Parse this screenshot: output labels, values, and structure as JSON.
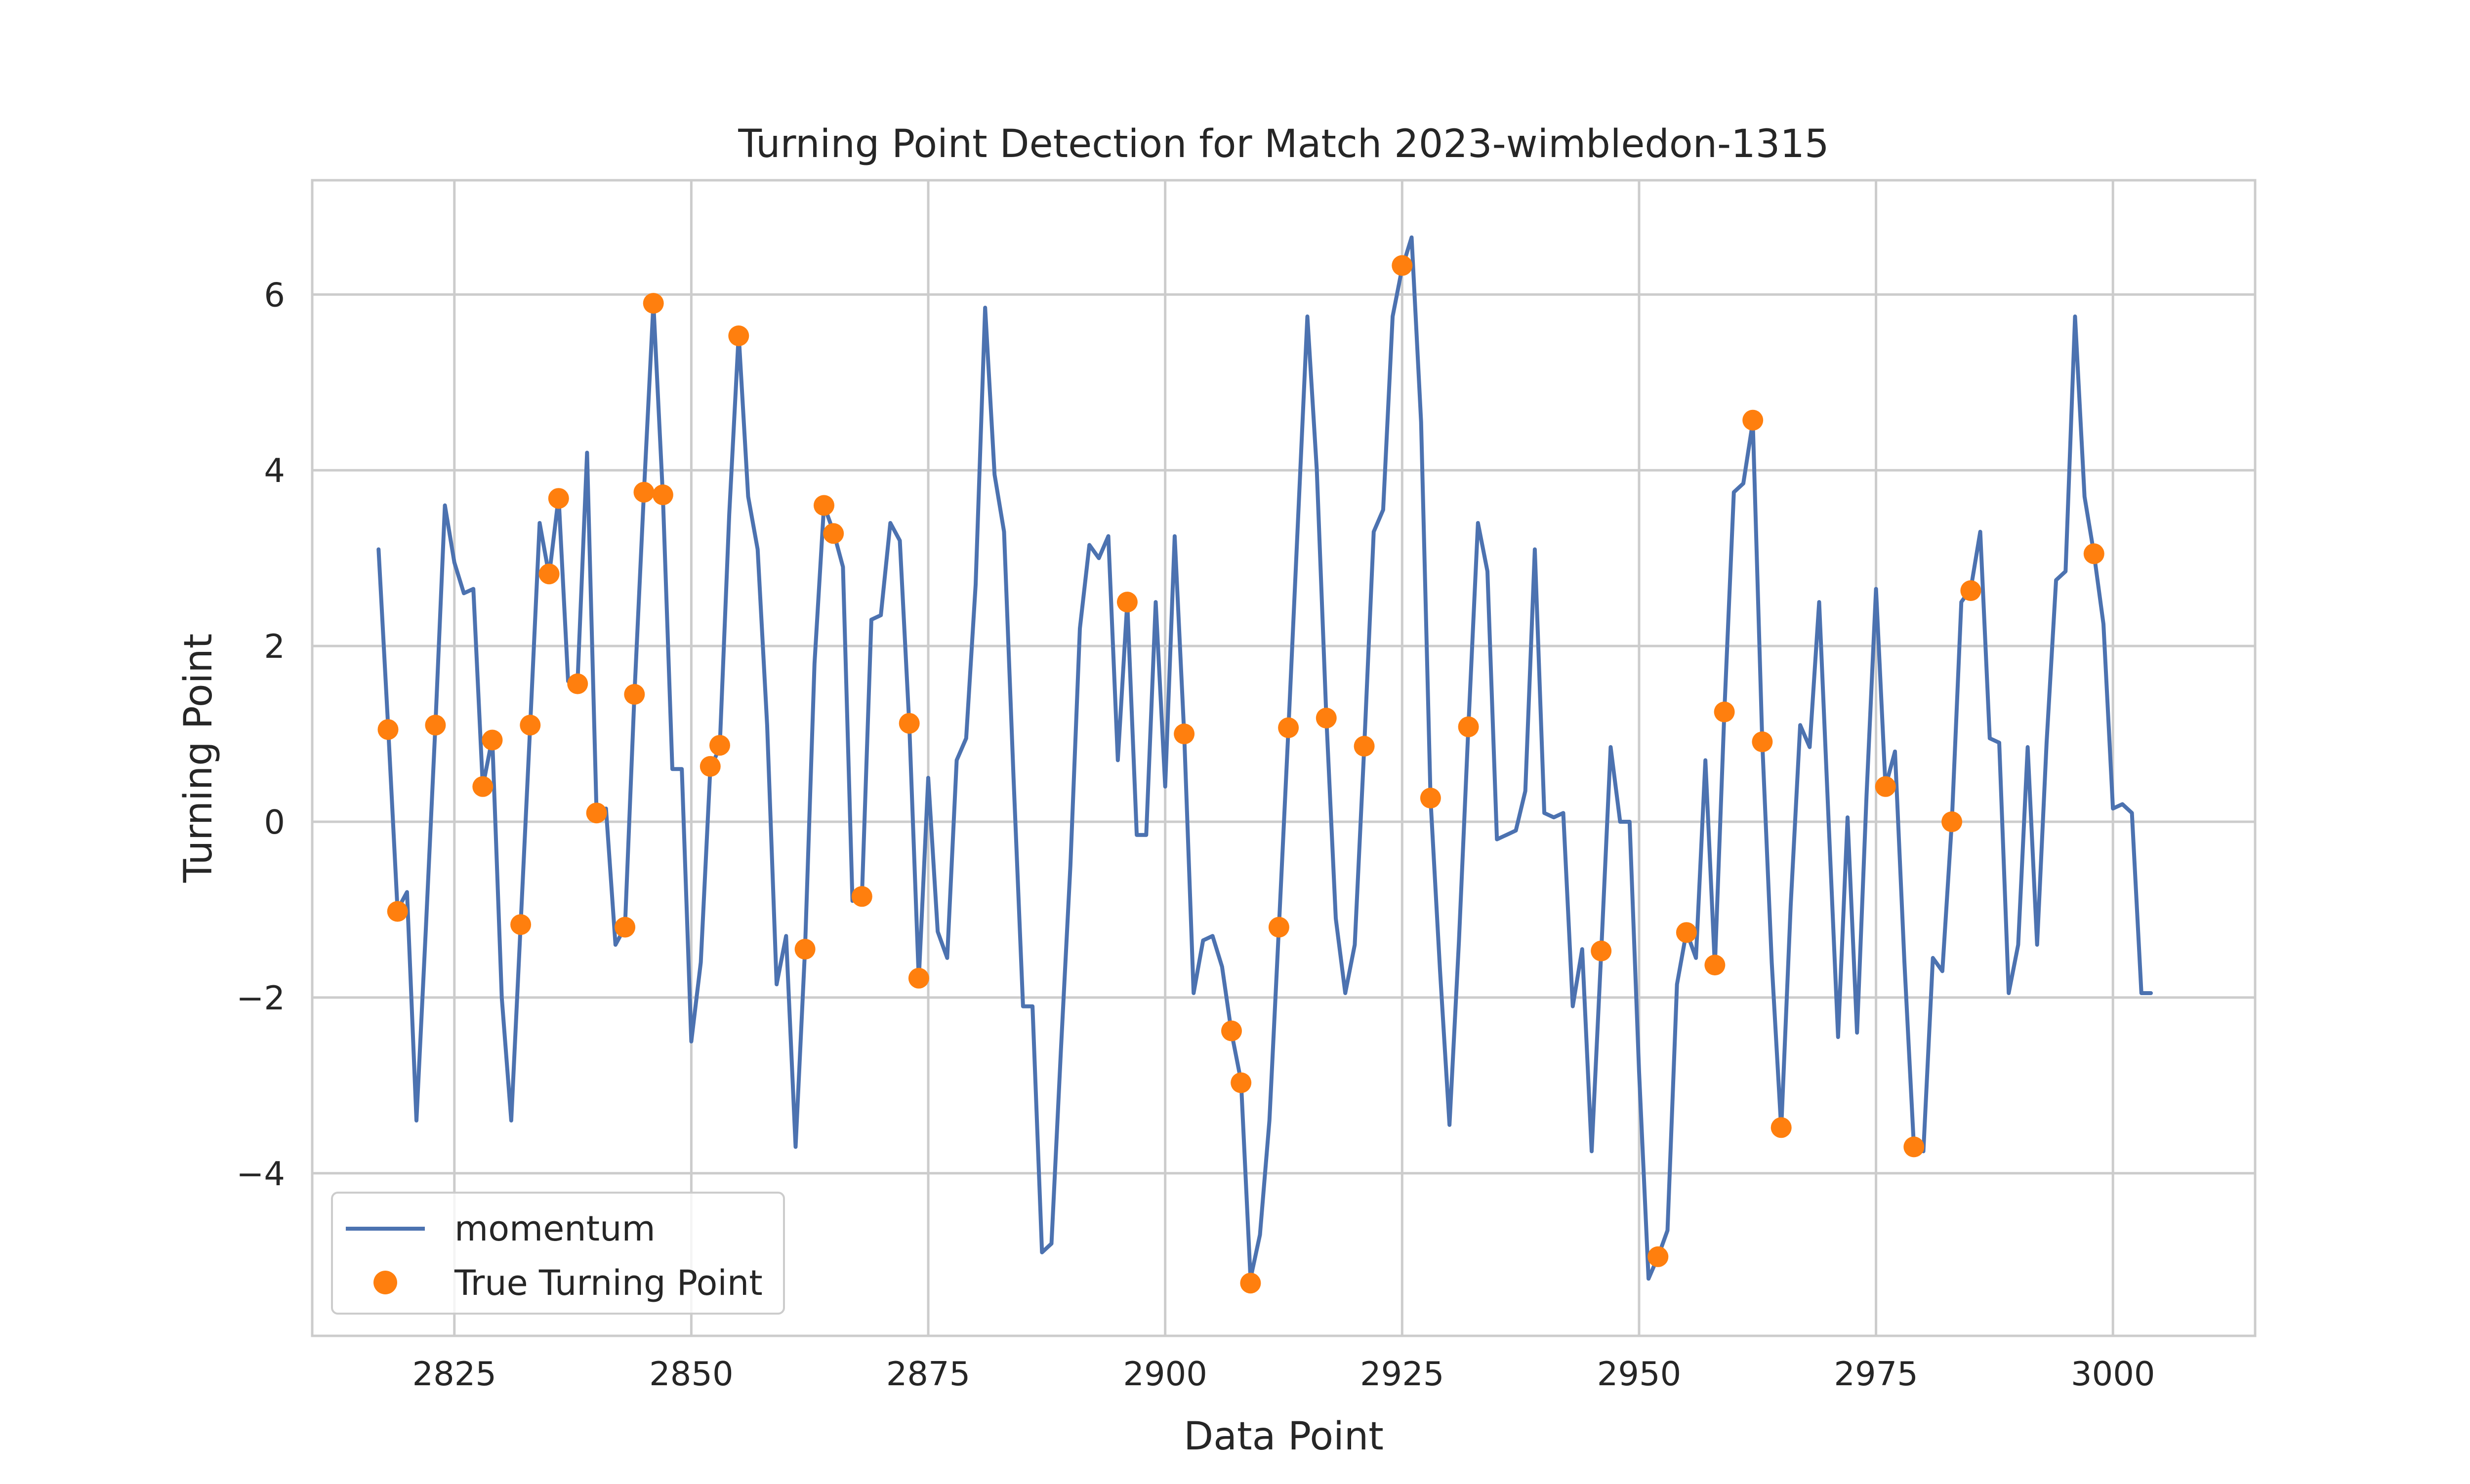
{
  "chart_data": {
    "type": "line",
    "title": "Turning Point Detection for Match 2023-wimbledon-1315",
    "xlabel": "Data Point",
    "ylabel": "Turning Point",
    "xlim": [
      2810,
      3015
    ],
    "ylim": [
      -5.85,
      7.3
    ],
    "x_ticks": [
      2825,
      2850,
      2875,
      2900,
      2925,
      2950,
      2975,
      3000
    ],
    "y_ticks": [
      -4,
      -2,
      0,
      2,
      4,
      6
    ],
    "grid": true,
    "legend_position": "lower-left",
    "series": [
      {
        "name": "momentum",
        "type": "line",
        "color": "#4c72b0",
        "points": [
          [
            2817,
            3.1
          ],
          [
            2818,
            1.1
          ],
          [
            2819,
            -1.0
          ],
          [
            2820,
            -0.8
          ],
          [
            2821,
            -3.4
          ],
          [
            2822,
            -1.2
          ],
          [
            2823,
            1.1
          ],
          [
            2824,
            3.6
          ],
          [
            2825,
            2.95
          ],
          [
            2826,
            2.6
          ],
          [
            2827,
            2.65
          ],
          [
            2828,
            0.4
          ],
          [
            2829,
            0.95
          ],
          [
            2830,
            -2.0
          ],
          [
            2831,
            -3.4
          ],
          [
            2832,
            -1.15
          ],
          [
            2833,
            1.1
          ],
          [
            2834,
            3.4
          ],
          [
            2835,
            2.8
          ],
          [
            2836,
            3.7
          ],
          [
            2837,
            1.6
          ],
          [
            2838,
            1.6
          ],
          [
            2839,
            4.2
          ],
          [
            2840,
            0.1
          ],
          [
            2841,
            0.15
          ],
          [
            2842,
            -1.4
          ],
          [
            2843,
            -1.2
          ],
          [
            2844,
            1.45
          ],
          [
            2845,
            3.75
          ],
          [
            2846,
            5.9
          ],
          [
            2847,
            3.7
          ],
          [
            2848,
            0.6
          ],
          [
            2849,
            0.6
          ],
          [
            2850,
            -2.5
          ],
          [
            2851,
            -1.6
          ],
          [
            2852,
            0.6
          ],
          [
            2853,
            0.85
          ],
          [
            2854,
            3.5
          ],
          [
            2855,
            5.55
          ],
          [
            2856,
            3.7
          ],
          [
            2857,
            3.1
          ],
          [
            2858,
            1.1
          ],
          [
            2859,
            -1.85
          ],
          [
            2860,
            -1.3
          ],
          [
            2861,
            -3.7
          ],
          [
            2862,
            -1.45
          ],
          [
            2863,
            1.8
          ],
          [
            2864,
            3.6
          ],
          [
            2865,
            3.3
          ],
          [
            2866,
            2.9
          ],
          [
            2867,
            -0.9
          ],
          [
            2868,
            -0.85
          ],
          [
            2869,
            2.3
          ],
          [
            2870,
            2.35
          ],
          [
            2871,
            3.4
          ],
          [
            2872,
            3.2
          ],
          [
            2873,
            1.1
          ],
          [
            2874,
            -1.8
          ],
          [
            2875,
            0.5
          ],
          [
            2876,
            -1.25
          ],
          [
            2877,
            -1.55
          ],
          [
            2878,
            0.7
          ],
          [
            2879,
            0.95
          ],
          [
            2880,
            2.7
          ],
          [
            2881,
            5.85
          ],
          [
            2882,
            3.95
          ],
          [
            2883,
            3.3
          ],
          [
            2884,
            0.5
          ],
          [
            2885,
            -2.1
          ],
          [
            2886,
            -2.1
          ],
          [
            2887,
            -4.9
          ],
          [
            2888,
            -4.8
          ],
          [
            2889,
            -2.6
          ],
          [
            2890,
            -0.5
          ],
          [
            2891,
            2.2
          ],
          [
            2892,
            3.15
          ],
          [
            2893,
            3.0
          ],
          [
            2894,
            3.25
          ],
          [
            2895,
            0.7
          ],
          [
            2896,
            2.5
          ],
          [
            2897,
            -0.15
          ],
          [
            2898,
            -0.15
          ],
          [
            2899,
            2.5
          ],
          [
            2900,
            0.4
          ],
          [
            2901,
            3.25
          ],
          [
            2902,
            1.0
          ],
          [
            2903,
            -1.95
          ],
          [
            2904,
            -1.35
          ],
          [
            2905,
            -1.3
          ],
          [
            2906,
            -1.65
          ],
          [
            2907,
            -2.4
          ],
          [
            2908,
            -2.95
          ],
          [
            2909,
            -5.2
          ],
          [
            2910,
            -4.7
          ],
          [
            2911,
            -3.4
          ],
          [
            2912,
            -1.2
          ],
          [
            2913,
            1.05
          ],
          [
            2914,
            3.4
          ],
          [
            2915,
            5.75
          ],
          [
            2916,
            4.0
          ],
          [
            2917,
            1.2
          ],
          [
            2918,
            -1.1
          ],
          [
            2919,
            -1.95
          ],
          [
            2920,
            -1.4
          ],
          [
            2921,
            0.85
          ],
          [
            2922,
            3.3
          ],
          [
            2923,
            3.55
          ],
          [
            2924,
            5.75
          ],
          [
            2925,
            6.3
          ],
          [
            2926,
            6.65
          ],
          [
            2927,
            4.55
          ],
          [
            2928,
            0.25
          ],
          [
            2929,
            -1.7
          ],
          [
            2930,
            -3.45
          ],
          [
            2931,
            -1.35
          ],
          [
            2932,
            1.1
          ],
          [
            2933,
            3.4
          ],
          [
            2934,
            2.85
          ],
          [
            2935,
            -0.2
          ],
          [
            2936,
            -0.15
          ],
          [
            2937,
            -0.1
          ],
          [
            2938,
            0.35
          ],
          [
            2939,
            3.1
          ],
          [
            2940,
            0.1
          ],
          [
            2941,
            0.05
          ],
          [
            2942,
            0.1
          ],
          [
            2943,
            -2.1
          ],
          [
            2944,
            -1.45
          ],
          [
            2945,
            -3.75
          ],
          [
            2946,
            -1.5
          ],
          [
            2947,
            0.85
          ],
          [
            2948,
            0.0
          ],
          [
            2949,
            0.0
          ],
          [
            2950,
            -2.85
          ],
          [
            2951,
            -5.2
          ],
          [
            2952,
            -4.95
          ],
          [
            2953,
            -4.65
          ],
          [
            2954,
            -1.85
          ],
          [
            2955,
            -1.25
          ],
          [
            2956,
            -1.55
          ],
          [
            2957,
            0.7
          ],
          [
            2958,
            -1.65
          ],
          [
            2959,
            1.25
          ],
          [
            2960,
            3.75
          ],
          [
            2961,
            3.85
          ],
          [
            2962,
            4.55
          ],
          [
            2963,
            0.9
          ],
          [
            2964,
            -1.6
          ],
          [
            2965,
            -3.5
          ],
          [
            2966,
            -0.95
          ],
          [
            2967,
            1.1
          ],
          [
            2968,
            0.85
          ],
          [
            2969,
            2.5
          ],
          [
            2970,
            0.0
          ],
          [
            2971,
            -2.45
          ],
          [
            2972,
            0.05
          ],
          [
            2973,
            -2.4
          ],
          [
            2974,
            0.3
          ],
          [
            2975,
            2.65
          ],
          [
            2976,
            0.4
          ],
          [
            2977,
            0.8
          ],
          [
            2978,
            -1.6
          ],
          [
            2979,
            -3.7
          ],
          [
            2980,
            -3.75
          ],
          [
            2981,
            -1.55
          ],
          [
            2982,
            -1.7
          ],
          [
            2983,
            0.0
          ],
          [
            2984,
            2.5
          ],
          [
            2985,
            2.65
          ],
          [
            2986,
            3.3
          ],
          [
            2987,
            0.95
          ],
          [
            2988,
            0.9
          ],
          [
            2989,
            -1.95
          ],
          [
            2990,
            -1.4
          ],
          [
            2991,
            0.85
          ],
          [
            2992,
            -1.4
          ],
          [
            2993,
            0.9
          ],
          [
            2994,
            2.75
          ],
          [
            2995,
            2.85
          ],
          [
            2996,
            5.75
          ],
          [
            2997,
            3.7
          ],
          [
            2998,
            3.05
          ],
          [
            2999,
            2.25
          ],
          [
            3000,
            0.15
          ],
          [
            3001,
            0.2
          ],
          [
            3002,
            0.1
          ],
          [
            3003,
            -1.95
          ],
          [
            3004,
            -1.95
          ]
        ]
      },
      {
        "name": "True Turning Point",
        "type": "scatter",
        "color": "#ff7f0e",
        "points": [
          [
            2818,
            1.05
          ],
          [
            2819,
            -1.02
          ],
          [
            2823,
            1.1
          ],
          [
            2828,
            0.4
          ],
          [
            2829,
            0.93
          ],
          [
            2832,
            -1.17
          ],
          [
            2833,
            1.1
          ],
          [
            2835,
            2.82
          ],
          [
            2836,
            3.68
          ],
          [
            2838,
            1.57
          ],
          [
            2840,
            0.1
          ],
          [
            2843,
            -1.2
          ],
          [
            2844,
            1.45
          ],
          [
            2845,
            3.75
          ],
          [
            2846,
            5.9
          ],
          [
            2847,
            3.72
          ],
          [
            2852,
            0.63
          ],
          [
            2853,
            0.87
          ],
          [
            2855,
            5.53
          ],
          [
            2862,
            -1.45
          ],
          [
            2864,
            3.6
          ],
          [
            2865,
            3.28
          ],
          [
            2868,
            -0.85
          ],
          [
            2873,
            1.12
          ],
          [
            2874,
            -1.78
          ],
          [
            2896,
            2.5
          ],
          [
            2902,
            1.0
          ],
          [
            2907,
            -2.38
          ],
          [
            2908,
            -2.97
          ],
          [
            2909,
            -5.25
          ],
          [
            2912,
            -1.2
          ],
          [
            2913,
            1.07
          ],
          [
            2917,
            1.18
          ],
          [
            2921,
            0.86
          ],
          [
            2925,
            6.33
          ],
          [
            2928,
            0.27
          ],
          [
            2932,
            1.08
          ],
          [
            2946,
            -1.47
          ],
          [
            2952,
            -4.95
          ],
          [
            2955,
            -1.26
          ],
          [
            2958,
            -1.63
          ],
          [
            2959,
            1.25
          ],
          [
            2962,
            4.57
          ],
          [
            2963,
            0.91
          ],
          [
            2965,
            -3.48
          ],
          [
            2976,
            0.4
          ],
          [
            2979,
            -3.7
          ],
          [
            2983,
            0.0
          ],
          [
            2985,
            2.63
          ],
          [
            2998,
            3.05
          ]
        ]
      }
    ]
  }
}
